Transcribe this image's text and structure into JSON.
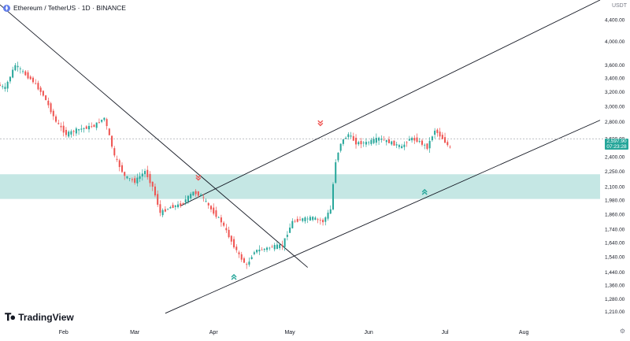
{
  "header": {
    "symbol_title": "Ethereum / TetherUS · 1D · BINANCE",
    "logo_icon": "ethereum-logo-icon"
  },
  "brand": {
    "name": "TradingView",
    "icon": "tradingview-logo-icon"
  },
  "currency": "USDT",
  "settings_icon": "gear-icon",
  "last_price": {
    "value": "2,597.90",
    "countdown": "07:23:28"
  },
  "colors": {
    "up": "#26a69a",
    "down": "#ef5350",
    "zone": "#b2dfdb",
    "line": "#131722"
  },
  "chart_data": {
    "type": "candlestick",
    "title": "Ethereum / TetherUS · 1D · BINANCE",
    "y_scale": "log",
    "ylim": [
      1150,
      4800
    ],
    "y_ticks": [
      "4,400.00",
      "4,000.00",
      "3,600.00",
      "3,400.00",
      "3,200.00",
      "3,000.00",
      "2,800.00",
      "2,600.00",
      "2,400.00",
      "2,250.00",
      "2,100.00",
      "1,980.00",
      "1,860.00",
      "1,740.00",
      "1,640.00",
      "1,540.00",
      "1,440.00",
      "1,360.00",
      "1,280.00",
      "1,210.00"
    ],
    "y_tick_values": [
      4400,
      4000,
      3600,
      3400,
      3200,
      3000,
      2800,
      2600,
      2400,
      2250,
      2100,
      1980,
      1860,
      1740,
      1640,
      1540,
      1440,
      1360,
      1280,
      1210
    ],
    "x_labels": [
      "Feb",
      "Mar",
      "Apr",
      "May",
      "Jun",
      "Jul",
      "Aug"
    ],
    "x_label_dates": [
      "2025-02-01",
      "2025-03-01",
      "2025-04-01",
      "2025-05-01",
      "2025-06-01",
      "2025-07-01",
      "2025-08-01"
    ],
    "xlim": [
      "2025-01-07",
      "2025-08-31"
    ],
    "candles_shown": [
      "2025-01-07",
      "2025-07-03"
    ],
    "support_zone": [
      1990,
      2220
    ],
    "trendlines": [
      {
        "name": "downtrend",
        "from": [
          "2025-01-07",
          4700
        ],
        "to": [
          "2025-05-08",
          1470
        ]
      },
      {
        "name": "channel-top",
        "from": [
          "2025-03-19",
          1930
        ],
        "to": [
          "2025-08-31",
          4800
        ]
      },
      {
        "name": "channel-bottom",
        "from": [
          "2025-03-13",
          1200
        ],
        "to": [
          "2025-08-31",
          2820
        ]
      }
    ],
    "markers": [
      {
        "type": "sell",
        "date": "2025-03-26",
        "price": 2200
      },
      {
        "type": "sell",
        "date": "2025-05-13",
        "price": 2800
      },
      {
        "type": "buy",
        "date": "2025-04-09",
        "price": 1400
      },
      {
        "type": "buy",
        "date": "2025-06-23",
        "price": 2040
      }
    ],
    "price_path": [
      [
        0,
        3300
      ],
      [
        3,
        3250
      ],
      [
        7,
        3600
      ],
      [
        11,
        3450
      ],
      [
        14,
        3350
      ],
      [
        18,
        3150
      ],
      [
        23,
        2800
      ],
      [
        27,
        2650
      ],
      [
        31,
        2700
      ],
      [
        38,
        2750
      ],
      [
        42,
        2850
      ],
      [
        46,
        2400
      ],
      [
        50,
        2200
      ],
      [
        54,
        2150
      ],
      [
        58,
        2250
      ],
      [
        61,
        2100
      ],
      [
        64,
        1870
      ],
      [
        68,
        1920
      ],
      [
        72,
        1940
      ],
      [
        77,
        2050
      ],
      [
        80,
        2020
      ],
      [
        84,
        1900
      ],
      [
        88,
        1800
      ],
      [
        92,
        1650
      ],
      [
        95,
        1550
      ],
      [
        98,
        1480
      ],
      [
        101,
        1580
      ],
      [
        104,
        1590
      ],
      [
        108,
        1610
      ],
      [
        112,
        1620
      ],
      [
        116,
        1800
      ],
      [
        120,
        1820
      ],
      [
        124,
        1830
      ],
      [
        128,
        1800
      ],
      [
        131,
        1900
      ],
      [
        133,
        2350
      ],
      [
        135,
        2550
      ],
      [
        138,
        2650
      ],
      [
        141,
        2550
      ],
      [
        145,
        2550
      ],
      [
        150,
        2600
      ],
      [
        155,
        2550
      ],
      [
        159,
        2500
      ],
      [
        162,
        2600
      ],
      [
        165,
        2580
      ],
      [
        169,
        2500
      ],
      [
        172,
        2700
      ],
      [
        175,
        2600
      ],
      [
        179,
        2450
      ],
      [
        182,
        2450
      ],
      [
        185,
        2250
      ],
      [
        188,
        2350
      ],
      [
        191,
        2420
      ],
      [
        194,
        2450
      ],
      [
        195,
        2500
      ],
      [
        197,
        2600
      ]
    ]
  }
}
